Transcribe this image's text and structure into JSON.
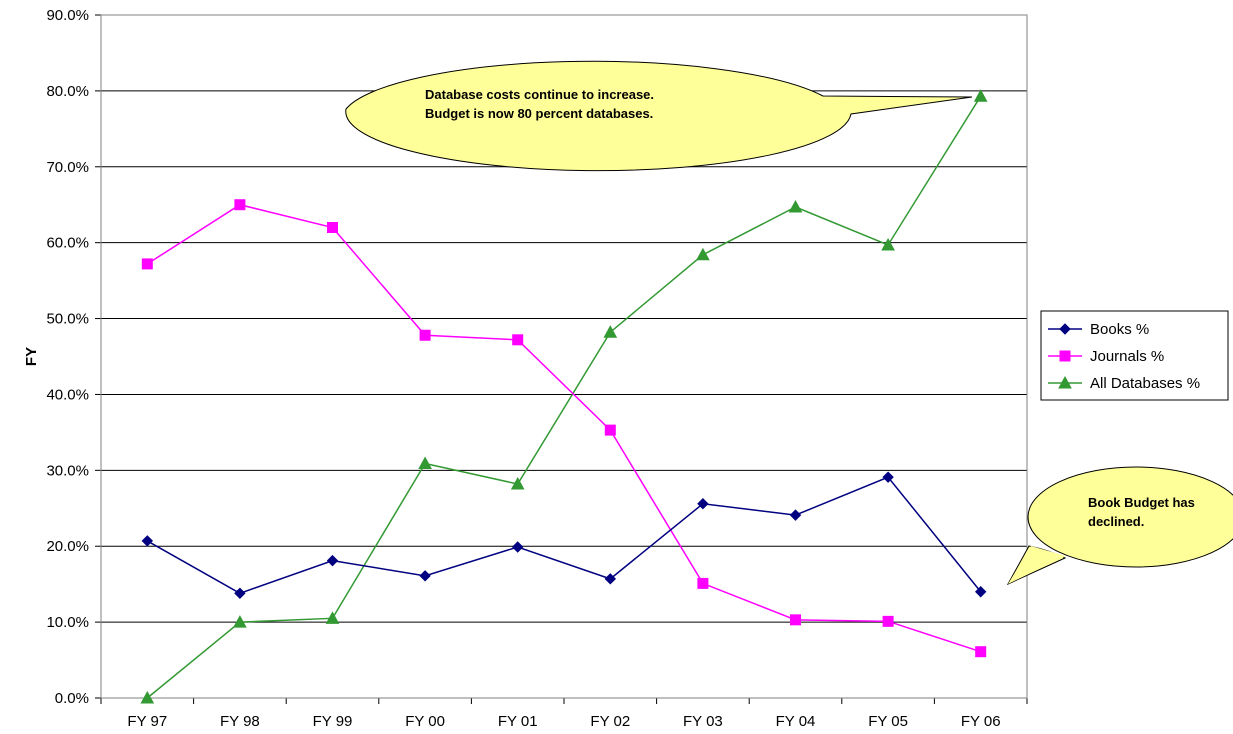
{
  "chart_data": {
    "type": "line",
    "title": "",
    "ylabel": "FY",
    "xlabel": "",
    "categories": [
      "FY 97",
      "FY 98",
      "FY 99",
      "FY 00",
      "FY 01",
      "FY 02",
      "FY 03",
      "FY 04",
      "FY 05",
      "FY 06"
    ],
    "ylim": [
      0,
      90
    ],
    "ytick_step": 10,
    "ytick_labels": [
      "0.0%",
      "10.0%",
      "20.0%",
      "30.0%",
      "40.0%",
      "50.0%",
      "60.0%",
      "70.0%",
      "80.0%",
      "90.0%"
    ],
    "grid": true,
    "legend_position": "right",
    "series": [
      {
        "name": "Books %",
        "color": "#000080",
        "marker": "diamond",
        "values": [
          20.7,
          13.8,
          18.1,
          16.1,
          19.9,
          15.7,
          25.6,
          24.1,
          29.1,
          14.0
        ]
      },
      {
        "name": "Journals %",
        "color": "#ff00ff",
        "marker": "square",
        "values": [
          57.2,
          65.0,
          62.0,
          47.8,
          47.2,
          35.3,
          15.1,
          10.3,
          10.1,
          6.1
        ]
      },
      {
        "name": "All Databases %",
        "color": "#339933",
        "marker": "triangle",
        "values": [
          0.0,
          10.0,
          10.5,
          30.9,
          28.2,
          48.2,
          58.4,
          64.7,
          59.7,
          79.3
        ]
      }
    ],
    "annotations": [
      {
        "lines": [
          "Database costs continue to increase.",
          "Budget is now 80 percent databases."
        ],
        "fill": "#ffff99"
      },
      {
        "lines": [
          "Book Budget has",
          "declined."
        ],
        "fill": "#ffff99"
      }
    ]
  }
}
